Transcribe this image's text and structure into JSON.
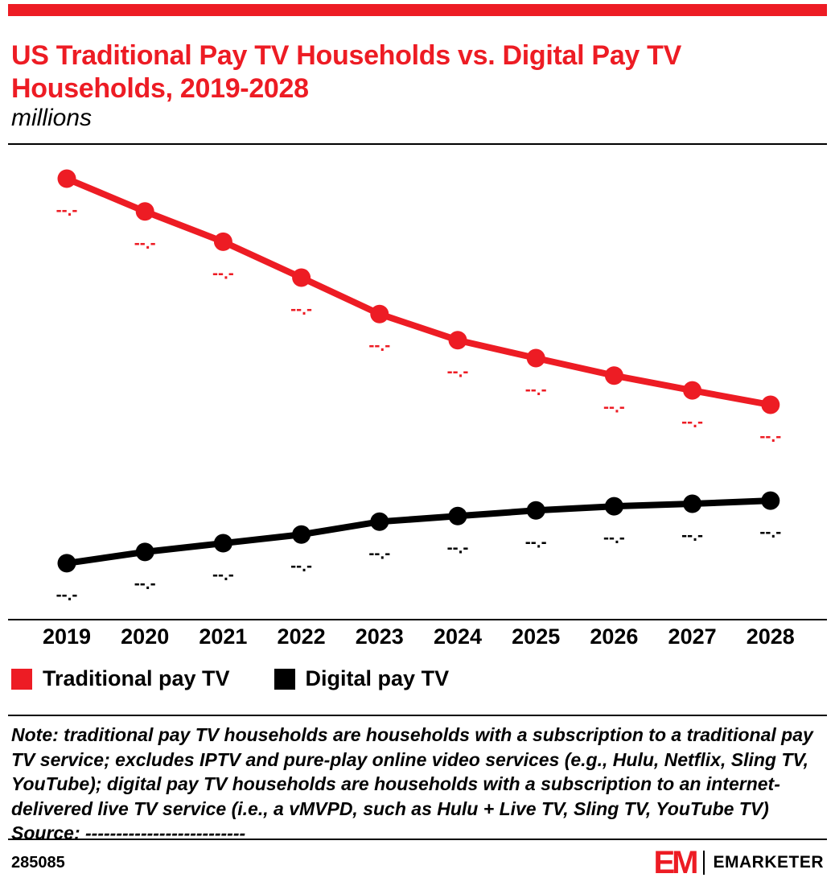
{
  "theme": {
    "accent_red": "#ed1c24",
    "black": "#000000"
  },
  "header": {
    "title": "US Traditional Pay TV Households vs. Digital Pay TV Households, 2019-2028",
    "subtitle": "millions"
  },
  "chart_data": {
    "type": "line",
    "categories": [
      "2019",
      "2020",
      "2021",
      "2022",
      "2023",
      "2024",
      "2025",
      "2026",
      "2027",
      "2028"
    ],
    "series": [
      {
        "name": "Traditional pay TV",
        "color": "#ed1c24",
        "values": [
          86.0,
          79.6,
          73.7,
          66.7,
          59.6,
          54.5,
          51.0,
          47.6,
          44.7,
          41.9
        ],
        "labels": [
          "--.-",
          "--.-",
          "--.-",
          "--.-",
          "--.-",
          "--.-",
          "--.-",
          "--.-",
          "--.-",
          "--.-"
        ]
      },
      {
        "name": "Digital pay TV",
        "color": "#000000",
        "values": [
          11.0,
          13.2,
          14.9,
          16.6,
          19.1,
          20.2,
          21.3,
          22.1,
          22.6,
          23.2
        ],
        "labels": [
          "--.-",
          "--.-",
          "--.-",
          "--.-",
          "--.-",
          "--.-",
          "--.-",
          "--.-",
          "--.-",
          "--.-"
        ]
      }
    ],
    "title": "US Traditional Pay TV Households vs. Digital Pay TV Households, 2019-2028",
    "xlabel": "",
    "ylabel": "millions",
    "ylim": [
      0,
      92
    ],
    "grid": false,
    "legend_position": "bottom",
    "value_labels_masked": true
  },
  "note": {
    "text": "Note: traditional pay TV households are households with a subscription to a traditional pay TV service; excludes IPTV and pure-play online video services (e.g., Hulu, Netflix, Sling TV, YouTube); digital pay TV households are households with a subscription to an internet-delivered live TV service (i.e., a vMVPD, such as Hulu + Live TV, Sling TV, YouTube TV)",
    "source": "Source: --------------------------"
  },
  "footer": {
    "chart_id": "285085",
    "brand_mark": "EM",
    "brand_name": "EMARKETER"
  }
}
